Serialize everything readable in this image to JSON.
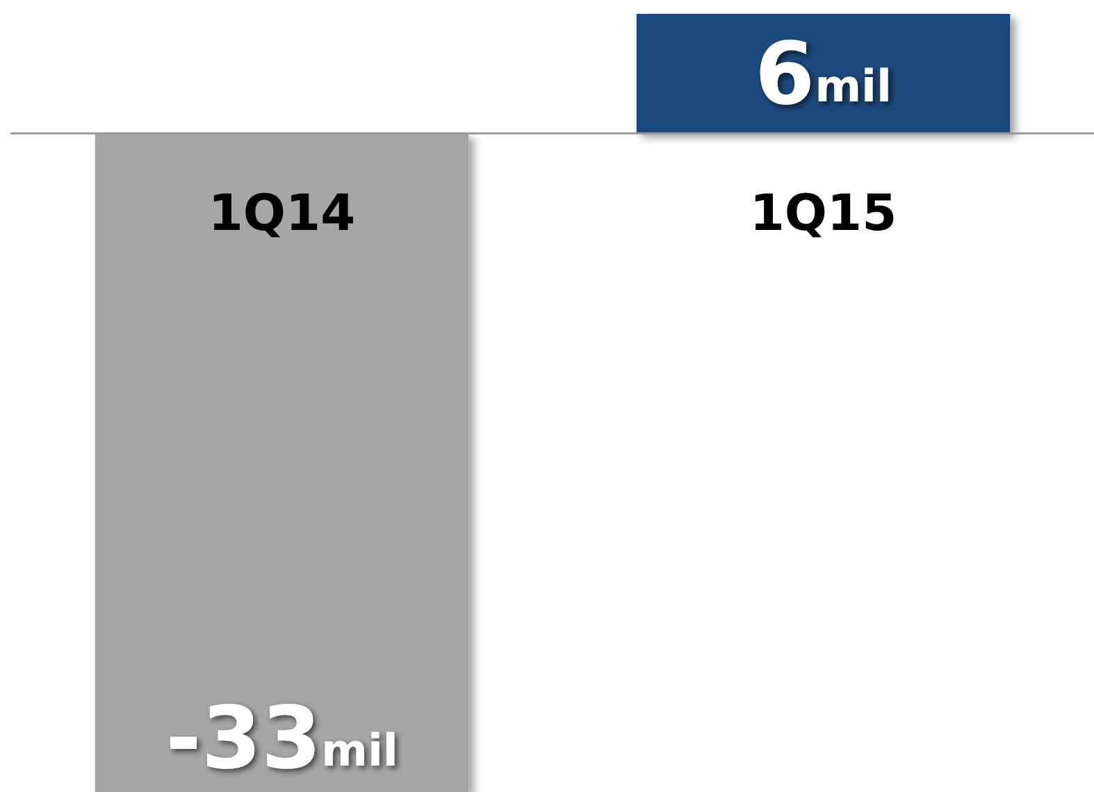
{
  "chart_data": {
    "type": "bar",
    "categories": [
      "1Q14",
      "1Q15"
    ],
    "values": [
      -33,
      6
    ],
    "colors": [
      "#a6a6a6",
      "#1f497d"
    ],
    "value_labels": [
      "-33mil",
      "6mil"
    ],
    "ylim": [
      -33,
      6
    ],
    "grid": false,
    "tick_labels": "x"
  }
}
